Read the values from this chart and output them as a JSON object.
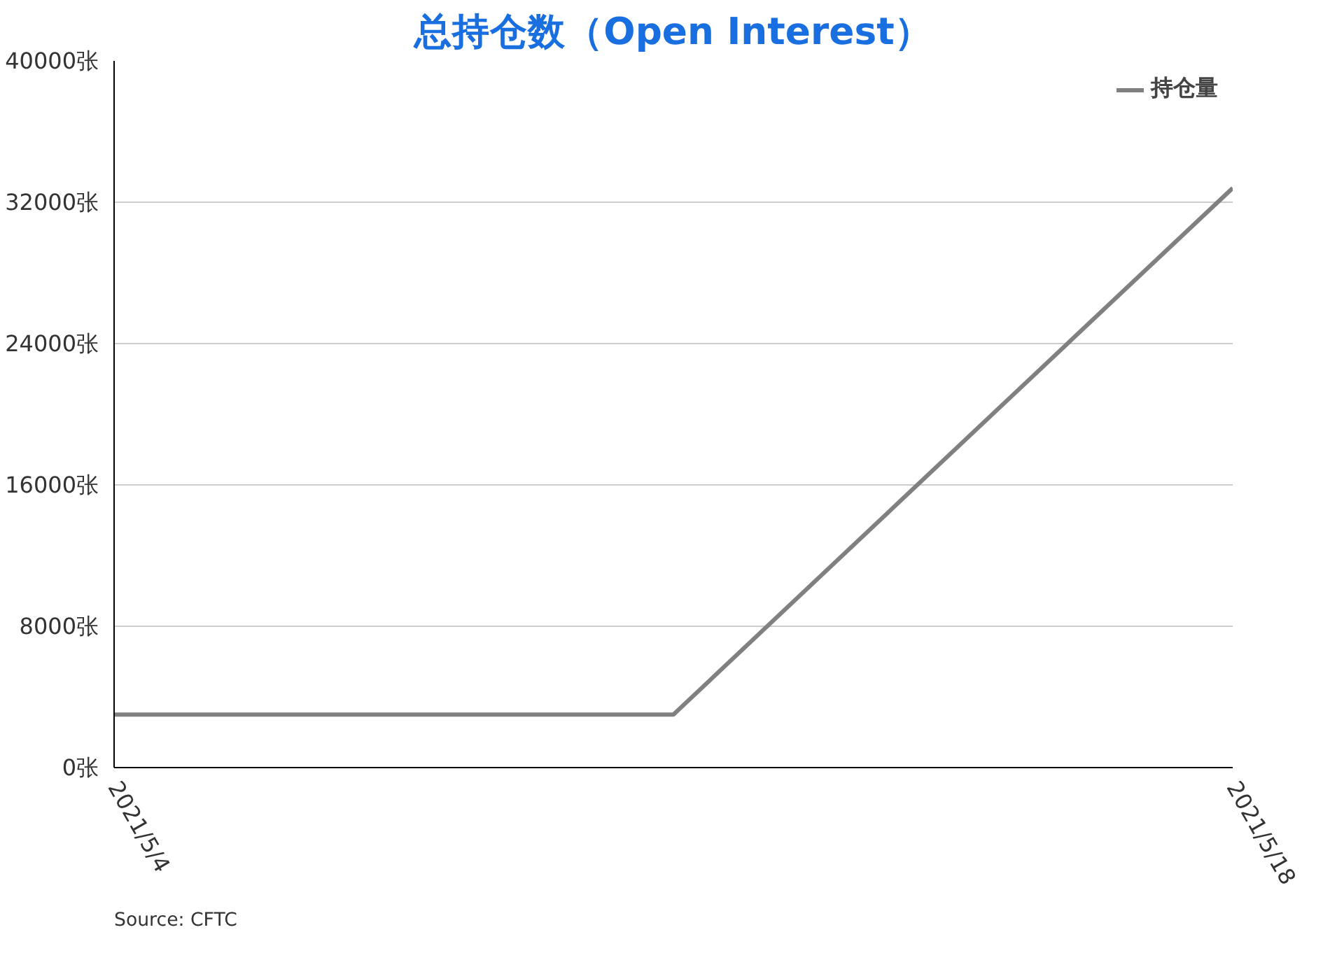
{
  "chart_data": {
    "type": "line",
    "title": "总持仓数（Open Interest）",
    "x": [
      "2021-05-04",
      "2021-05-11",
      "2021-05-18"
    ],
    "series": [
      {
        "name": "持仓量",
        "color": "#808080",
        "values": [
          3000,
          3000,
          32800
        ]
      }
    ],
    "xlim": [
      "2021-05-04",
      "2021-05-18"
    ],
    "xticks": [
      {
        "value": "2021-05-04",
        "label": "2021/5/4"
      },
      {
        "value": "2021-05-18",
        "label": "2021/5/18"
      }
    ],
    "ylim": [
      0,
      40000
    ],
    "yticks": [
      {
        "value": 0,
        "label": "0张"
      },
      {
        "value": 8000,
        "label": "8000张"
      },
      {
        "value": 16000,
        "label": "16000张"
      },
      {
        "value": 24000,
        "label": "24000张"
      },
      {
        "value": 32000,
        "label": "32000张"
      },
      {
        "value": 40000,
        "label": "40000张"
      }
    ],
    "grid": "y",
    "legend": "top right",
    "marker": "none",
    "line_style": "solid",
    "annotations": [
      "Source: CFTC"
    ]
  }
}
